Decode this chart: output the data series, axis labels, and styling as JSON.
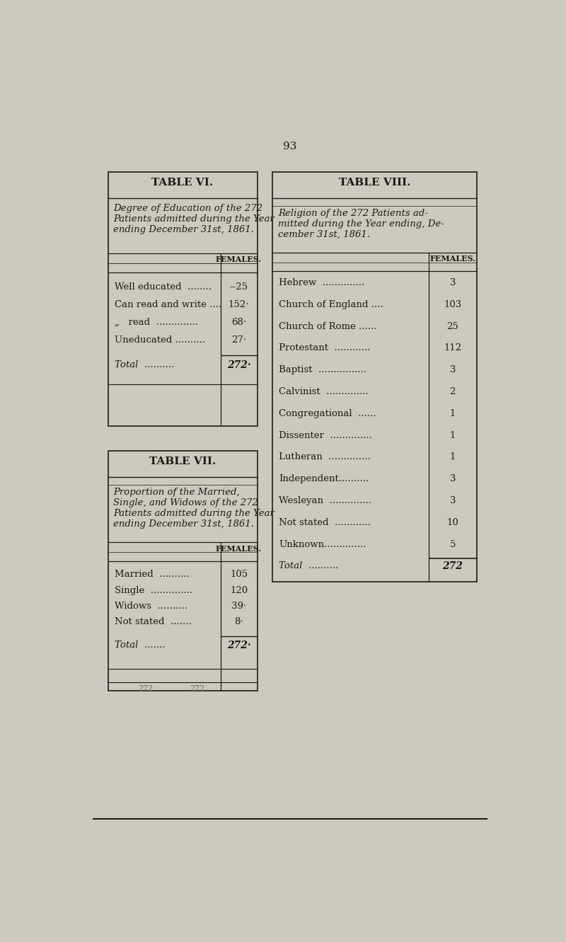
{
  "page_number": "93",
  "bg_color": "#cccac0",
  "line_color": "#1a1a1a",
  "table6": {
    "title": "TABLE VI.",
    "subtitle": "Degree of Education of the 272\nPatients admitted during the Year\nending December 31st, 1861.",
    "col_header": "FEMALES.",
    "rows": [
      [
        "Well educated  ........",
        "--25"
      ],
      [
        "Can read and write ....",
        "152·"
      ],
      [
        "„   read  ..............",
        "68·"
      ],
      [
        "Uneducated ..........",
        "27·"
      ],
      [
        "Total  ..........",
        "272·"
      ]
    ],
    "total_row_idx": 4
  },
  "table7": {
    "title": "TABLE VII.",
    "subtitle": "Proportion of the Married,\nSingle, and Widows of the 272\nPatients admitted during the Year\nending December 31st, 1861.",
    "col_header": "FEMALES.",
    "rows": [
      [
        "Married  ..........",
        "105"
      ],
      [
        "Single  ..............",
        "120"
      ],
      [
        "Widows  ..........",
        "39·"
      ],
      [
        "Not stated  .......",
        "8·"
      ],
      [
        "Total  .......",
        "272·"
      ]
    ],
    "total_row_idx": 4
  },
  "table8": {
    "title": "TABLE VIII.",
    "subtitle": "Religion of the 272 Patients ad-\nmitted during the Year ending, De-\ncember 31st, 1861.",
    "col_header": "FEMALES.",
    "rows": [
      [
        "Hebrew  ..............",
        "3"
      ],
      [
        "Church of England ....",
        "103"
      ],
      [
        "Church of Rome ......",
        "25"
      ],
      [
        "Protestant  ............",
        "112"
      ],
      [
        "Baptist  ................",
        "3"
      ],
      [
        "Calvinist  ..............",
        "2"
      ],
      [
        "Congregational  ......",
        "1"
      ],
      [
        "Dissenter  ..............",
        "1"
      ],
      [
        "Lutheran  ..............",
        "1"
      ],
      [
        "Independent..........",
        "3"
      ],
      [
        "Wesleyan  ..............",
        "3"
      ],
      [
        "Not stated  ............",
        "10"
      ],
      [
        "Unknown..............",
        "5"
      ],
      [
        "Total  ..........",
        "272"
      ]
    ],
    "total_row_idx": 13
  }
}
